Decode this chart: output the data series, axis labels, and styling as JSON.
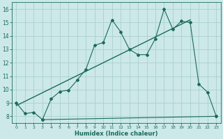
{
  "xlabel": "Humidex (Indice chaleur)",
  "xlim": [
    -0.5,
    23.5
  ],
  "ylim": [
    7.5,
    16.5
  ],
  "xticks": [
    0,
    1,
    2,
    3,
    4,
    5,
    6,
    7,
    8,
    9,
    10,
    11,
    12,
    13,
    14,
    15,
    16,
    17,
    18,
    19,
    20,
    21,
    22,
    23
  ],
  "yticks": [
    8,
    9,
    10,
    11,
    12,
    13,
    14,
    15,
    16
  ],
  "bg_color": "#cce8e8",
  "line_color": "#1a6b5a",
  "grid_color": "#aacfcf",
  "line1_x": [
    0,
    1,
    2,
    3,
    4,
    5,
    6,
    7,
    8,
    9,
    10,
    11,
    12,
    13,
    14,
    15,
    16,
    17,
    18,
    19,
    20,
    21,
    22,
    23
  ],
  "line1_y": [
    9.0,
    8.2,
    8.3,
    7.75,
    9.3,
    9.85,
    9.95,
    10.7,
    11.5,
    13.3,
    13.5,
    15.2,
    14.3,
    13.0,
    12.6,
    12.6,
    13.8,
    16.0,
    14.5,
    15.1,
    15.0,
    10.4,
    9.8,
    8.0
  ],
  "line2_x": [
    3,
    23
  ],
  "line2_y": [
    7.75,
    8.0
  ],
  "line3_x": [
    0,
    20
  ],
  "line3_y": [
    8.8,
    15.2
  ]
}
